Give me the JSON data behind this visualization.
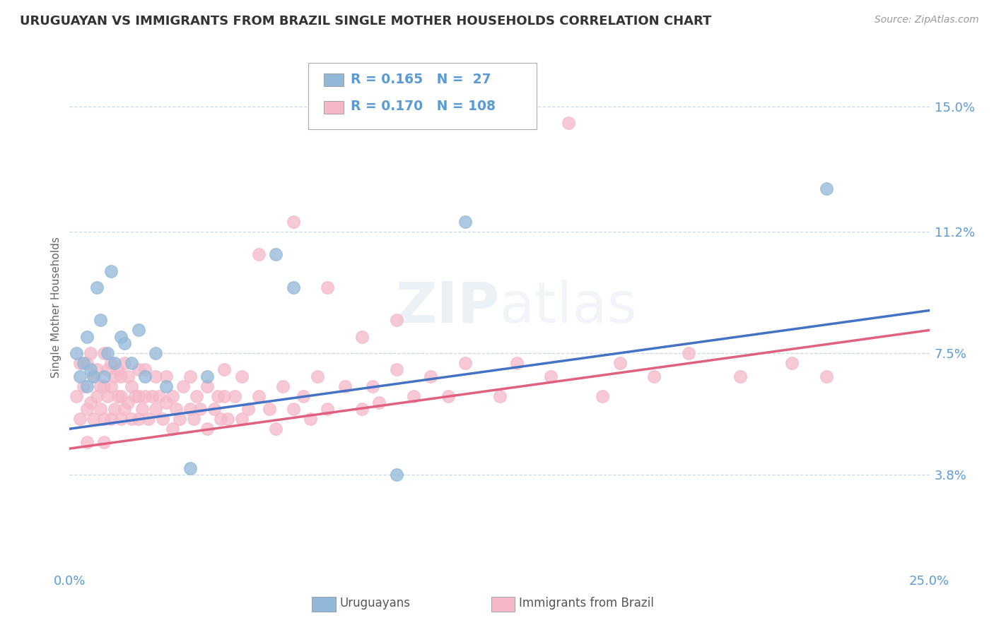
{
  "title": "URUGUAYAN VS IMMIGRANTS FROM BRAZIL SINGLE MOTHER HOUSEHOLDS CORRELATION CHART",
  "source": "Source: ZipAtlas.com",
  "ylabel": "Single Mother Households",
  "ytick_labels": [
    "3.8%",
    "7.5%",
    "11.2%",
    "15.0%"
  ],
  "ytick_values": [
    0.038,
    0.075,
    0.112,
    0.15
  ],
  "xmin": 0.0,
  "xmax": 0.25,
  "ymin": 0.01,
  "ymax": 0.168,
  "R_blue": 0.165,
  "N_blue": 27,
  "R_pink": 0.17,
  "N_pink": 108,
  "blue_color": "#92b8d8",
  "pink_color": "#f5b8c8",
  "trend_blue": "#4472c4",
  "trend_pink": "#e06080",
  "axis_label_color": "#5b9bd5",
  "watermark": "ZIPatlas",
  "blue_trend_start": 0.052,
  "blue_trend_end": 0.088,
  "pink_trend_start": 0.046,
  "pink_trend_end": 0.082,
  "uruguayans_x": [
    0.002,
    0.003,
    0.004,
    0.005,
    0.005,
    0.006,
    0.007,
    0.008,
    0.009,
    0.01,
    0.011,
    0.012,
    0.013,
    0.015,
    0.016,
    0.018,
    0.02,
    0.022,
    0.025,
    0.028,
    0.035,
    0.04,
    0.06,
    0.065,
    0.095,
    0.115,
    0.22
  ],
  "uruguayans_y": [
    0.075,
    0.068,
    0.072,
    0.08,
    0.065,
    0.07,
    0.068,
    0.095,
    0.085,
    0.068,
    0.075,
    0.1,
    0.072,
    0.08,
    0.078,
    0.072,
    0.082,
    0.068,
    0.075,
    0.065,
    0.04,
    0.068,
    0.105,
    0.095,
    0.038,
    0.115,
    0.125
  ],
  "brazil_x": [
    0.002,
    0.003,
    0.003,
    0.004,
    0.005,
    0.005,
    0.005,
    0.006,
    0.006,
    0.007,
    0.007,
    0.008,
    0.008,
    0.009,
    0.009,
    0.01,
    0.01,
    0.01,
    0.01,
    0.011,
    0.011,
    0.012,
    0.012,
    0.012,
    0.013,
    0.013,
    0.014,
    0.014,
    0.015,
    0.015,
    0.015,
    0.016,
    0.016,
    0.017,
    0.017,
    0.018,
    0.018,
    0.019,
    0.02,
    0.02,
    0.02,
    0.021,
    0.022,
    0.022,
    0.023,
    0.024,
    0.025,
    0.025,
    0.026,
    0.027,
    0.028,
    0.028,
    0.03,
    0.03,
    0.031,
    0.032,
    0.033,
    0.035,
    0.035,
    0.036,
    0.037,
    0.038,
    0.04,
    0.04,
    0.042,
    0.043,
    0.044,
    0.045,
    0.045,
    0.046,
    0.048,
    0.05,
    0.05,
    0.052,
    0.055,
    0.058,
    0.06,
    0.062,
    0.065,
    0.068,
    0.07,
    0.072,
    0.075,
    0.08,
    0.085,
    0.088,
    0.09,
    0.095,
    0.1,
    0.105,
    0.11,
    0.115,
    0.125,
    0.13,
    0.14,
    0.155,
    0.16,
    0.17,
    0.18,
    0.195,
    0.21,
    0.22,
    0.055,
    0.065,
    0.075,
    0.085,
    0.095,
    0.145
  ],
  "brazil_y": [
    0.062,
    0.055,
    0.072,
    0.065,
    0.048,
    0.058,
    0.072,
    0.06,
    0.075,
    0.055,
    0.068,
    0.062,
    0.07,
    0.058,
    0.065,
    0.048,
    0.055,
    0.065,
    0.075,
    0.062,
    0.07,
    0.055,
    0.065,
    0.072,
    0.058,
    0.068,
    0.062,
    0.07,
    0.055,
    0.062,
    0.068,
    0.058,
    0.072,
    0.06,
    0.068,
    0.055,
    0.065,
    0.062,
    0.055,
    0.062,
    0.07,
    0.058,
    0.062,
    0.07,
    0.055,
    0.062,
    0.058,
    0.068,
    0.062,
    0.055,
    0.06,
    0.068,
    0.052,
    0.062,
    0.058,
    0.055,
    0.065,
    0.058,
    0.068,
    0.055,
    0.062,
    0.058,
    0.052,
    0.065,
    0.058,
    0.062,
    0.055,
    0.062,
    0.07,
    0.055,
    0.062,
    0.055,
    0.068,
    0.058,
    0.062,
    0.058,
    0.052,
    0.065,
    0.058,
    0.062,
    0.055,
    0.068,
    0.058,
    0.065,
    0.058,
    0.065,
    0.06,
    0.07,
    0.062,
    0.068,
    0.062,
    0.072,
    0.062,
    0.072,
    0.068,
    0.062,
    0.072,
    0.068,
    0.075,
    0.068,
    0.072,
    0.068,
    0.105,
    0.115,
    0.095,
    0.08,
    0.085,
    0.145
  ]
}
